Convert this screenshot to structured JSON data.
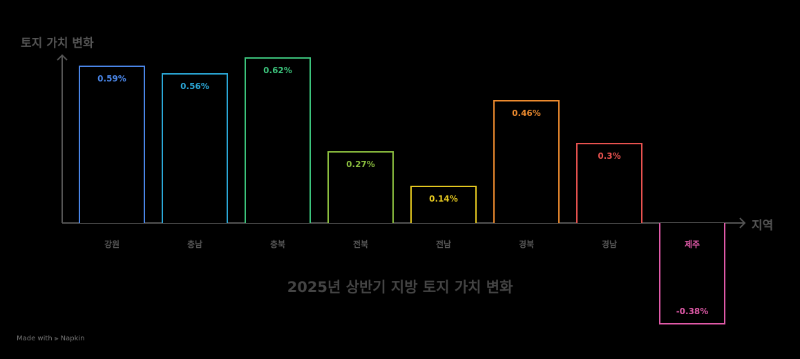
{
  "chart_data": {
    "type": "bar",
    "title": "2025년 상반기 지방 토지 가치 변화",
    "xlabel": "지역",
    "ylabel": "토지 가치 변화",
    "categories": [
      "강원",
      "충남",
      "충북",
      "전북",
      "전남",
      "경북",
      "경남",
      "제주"
    ],
    "values": [
      0.59,
      0.56,
      0.62,
      0.27,
      0.14,
      0.46,
      0.3,
      -0.38
    ],
    "value_labels": [
      "0.59%",
      "0.56%",
      "0.62%",
      "0.27%",
      "0.14%",
      "0.46%",
      "0.3%",
      "-0.38%"
    ],
    "colors": [
      "#4a86e8",
      "#2ba8d8",
      "#3cc47c",
      "#8cbf3f",
      "#e5c820",
      "#ec8a2e",
      "#e8524f",
      "#e05aa8"
    ],
    "grid": false,
    "legend": "none"
  },
  "footer": {
    "text": "Made with ⫸ Napkin"
  }
}
